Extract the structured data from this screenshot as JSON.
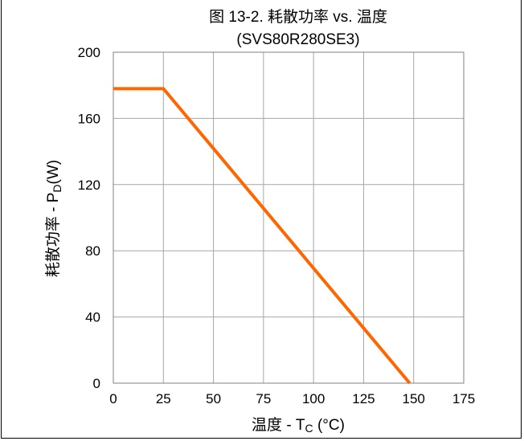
{
  "chart_data": {
    "type": "line",
    "title": "图 13-2. 耗散功率 vs. 温度",
    "subtitle": "(SVS80R280SE3)",
    "xlabel": {
      "prefix": "温度 - T",
      "sub": "C",
      "suffix": " (°C)"
    },
    "ylabel": {
      "prefix": "耗散功率 - P",
      "sub": "D",
      "suffix": "(W)"
    },
    "xlim": [
      0,
      175
    ],
    "ylim": [
      0,
      200
    ],
    "xticks": [
      "0",
      "25",
      "50",
      "75",
      "100",
      "125",
      "150",
      "175"
    ],
    "yticks": [
      "0",
      "40",
      "80",
      "120",
      "160",
      "200"
    ],
    "grid": true,
    "series": [
      {
        "color": "#FF6600",
        "x": [
          0,
          25,
          148
        ],
        "y": [
          178,
          178,
          0
        ]
      }
    ]
  }
}
